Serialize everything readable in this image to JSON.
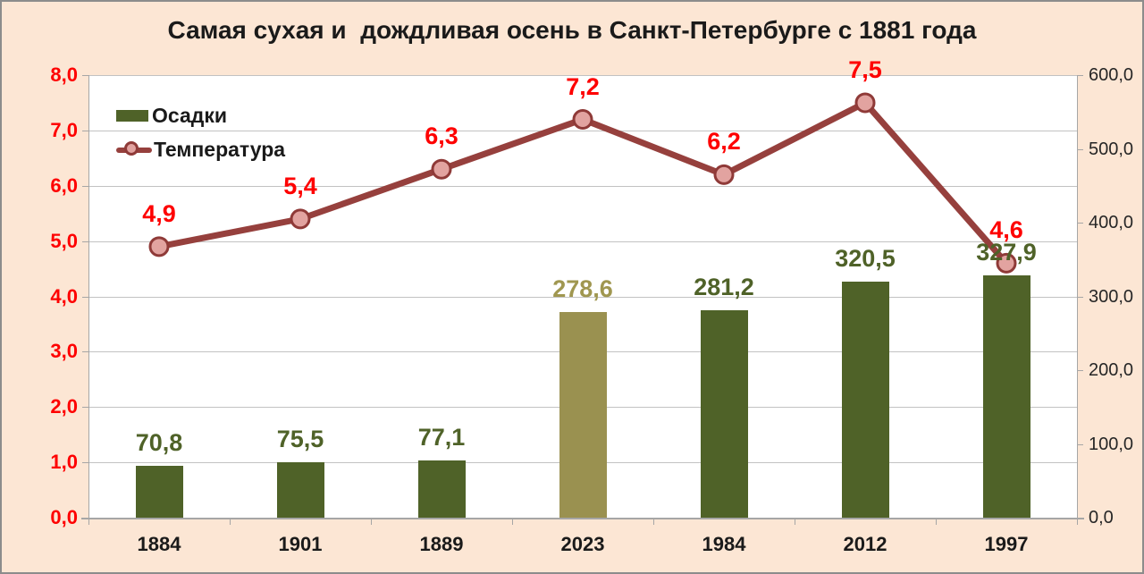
{
  "title": "Самая сухая и  дождливая осень в Санкт-Петербурге с 1881 года",
  "legend": {
    "items": [
      {
        "label": "Осадки"
      },
      {
        "label": "Температура"
      }
    ]
  },
  "colors": {
    "background": "#fce6d4",
    "plot_background": "#ffffff",
    "gridline": "#c2c2c2",
    "axis_line": "#a6a6a6",
    "bar": "#4f6228",
    "bar_highlight": "#9a9150",
    "bar_label": "#4f6228",
    "bar_highlight_label": "#a09750",
    "line": "#96403d",
    "marker_fill": "#e2a3a0",
    "marker_stroke": "#8f3a38",
    "temp_label": "#fe0000",
    "left_axis_label": "#fe0000",
    "right_axis_label": "#262626",
    "x_axis_label": "#1a1a1a"
  },
  "chart_data": {
    "type": "bar",
    "subtype": "bar-line-combo",
    "title": "Самая сухая и  дождливая осень в Санкт-Петербурге с 1881 года",
    "categories": [
      "1884",
      "1901",
      "1889",
      "2023",
      "1984",
      "2012",
      "1997"
    ],
    "series": [
      {
        "name": "Осадки",
        "type": "bar",
        "axis": "right",
        "values": [
          70.8,
          75.5,
          77.1,
          278.6,
          281.2,
          320.5,
          327.9
        ],
        "labels": [
          "70,8",
          "75,5",
          "77,1",
          "278,6",
          "281,2",
          "320,5",
          "327,9"
        ],
        "highlight_index": 3
      },
      {
        "name": "Температура",
        "type": "line",
        "axis": "left",
        "values": [
          4.9,
          5.4,
          6.3,
          7.2,
          6.2,
          7.5,
          4.6
        ],
        "labels": [
          "4,9",
          "5,4",
          "6,3",
          "7,2",
          "6,2",
          "7,5",
          "4,6"
        ]
      }
    ],
    "left_axis": {
      "min": 0,
      "max": 8,
      "step": 1,
      "tick_labels": [
        "0,0",
        "1,0",
        "2,0",
        "3,0",
        "4,0",
        "5,0",
        "6,0",
        "7,0",
        "8,0"
      ]
    },
    "right_axis": {
      "min": 0,
      "max": 600,
      "step": 100,
      "tick_labels": [
        "0,0",
        "100,0",
        "200,0",
        "300,0",
        "400,0",
        "500,0",
        "600,0"
      ]
    },
    "grid": "horizontal",
    "legend_position": "top-left-inside"
  }
}
